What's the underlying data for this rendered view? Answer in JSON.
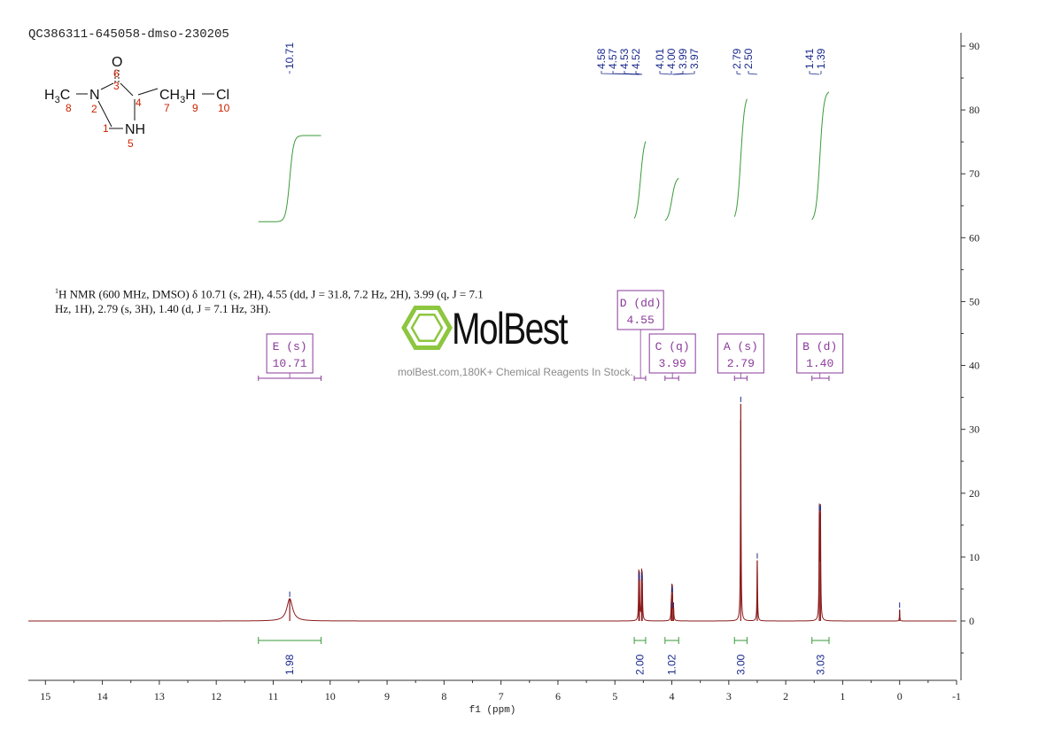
{
  "header": {
    "sample_id": "QC386311-645058-dmso-230205"
  },
  "structure": {
    "labels": {
      "o": "O",
      "h3c": "H3C",
      "n": "N",
      "nh": "NH",
      "ch3h": "CH3H",
      "cl": "Cl"
    },
    "atom_numbers": [
      "1",
      "2",
      "3",
      "4",
      "5",
      "6",
      "7",
      "8",
      "9",
      "10"
    ]
  },
  "nmr_summary": {
    "prefix": "1",
    "line1": "H NMR (600 MHz, DMSO) δ 10.71 (s, 2H), 4.55 (dd, J = 31.8, 7.2 Hz, 2H), 3.99 (q, J = 7.1",
    "line2": "Hz, 1H), 2.79 (s, 3H), 1.40 (d, J = 7.1 Hz, 3H)."
  },
  "watermark": {
    "brand": "MolBest",
    "tagline": "molBest.com,180K+ Chemical Reagents In Stock."
  },
  "colors": {
    "spectrum": "#8b1a1a",
    "integral": "#3a9a3a",
    "peak_label": "#1a2a8c",
    "multiplet_box": "#8a3a9a",
    "axis": "#333333",
    "logo_green": "#8dc63f"
  },
  "chart_data": {
    "type": "line",
    "title": "",
    "xlabel": "f1 (ppm)",
    "ylabel": "",
    "xlim": [
      15.3,
      -1.0
    ],
    "ylim": [
      -9,
      92
    ],
    "x_reversed": true,
    "x_ticks": [
      "15",
      "14",
      "13",
      "12",
      "11",
      "10",
      "9",
      "8",
      "7",
      "6",
      "5",
      "4",
      "3",
      "2",
      "1",
      "0",
      "-1"
    ],
    "y_ticks": [
      "90",
      "80",
      "70",
      "60",
      "50",
      "40",
      "30",
      "20",
      "10",
      "0"
    ],
    "grid": false,
    "peaks": [
      {
        "ppm": 10.71,
        "height": 3.5,
        "width": 0.06
      },
      {
        "ppm": 4.58,
        "height": 6.5,
        "width": 0.006
      },
      {
        "ppm": 4.57,
        "height": 6.0,
        "width": 0.006
      },
      {
        "ppm": 4.53,
        "height": 6.5,
        "width": 0.006
      },
      {
        "ppm": 4.52,
        "height": 6.0,
        "width": 0.006
      },
      {
        "ppm": 4.01,
        "height": 1.8,
        "width": 0.006
      },
      {
        "ppm": 4.0,
        "height": 4.2,
        "width": 0.006
      },
      {
        "ppm": 3.99,
        "height": 4.2,
        "width": 0.006
      },
      {
        "ppm": 3.97,
        "height": 1.8,
        "width": 0.006
      },
      {
        "ppm": 2.79,
        "height": 34.0,
        "width": 0.006
      },
      {
        "ppm": 2.5,
        "height": 9.5,
        "width": 0.006
      },
      {
        "ppm": 1.41,
        "height": 17.0,
        "width": 0.006
      },
      {
        "ppm": 1.39,
        "height": 17.0,
        "width": 0.006
      },
      {
        "ppm": 0.0,
        "height": 1.8,
        "width": 0.004
      }
    ],
    "peak_labels": [
      {
        "text": "10.71",
        "ppm": 10.71
      },
      {
        "text": "4.58",
        "ppm": 4.58
      },
      {
        "text": "4.57",
        "ppm": 4.57
      },
      {
        "text": "4.53",
        "ppm": 4.53
      },
      {
        "text": "4.52",
        "ppm": 4.52
      },
      {
        "text": "4.01",
        "ppm": 4.01
      },
      {
        "text": "4.00",
        "ppm": 4.0
      },
      {
        "text": "3.99",
        "ppm": 3.99
      },
      {
        "text": "3.97",
        "ppm": 3.97
      },
      {
        "text": "2.79",
        "ppm": 2.79
      },
      {
        "text": "2.50",
        "ppm": 2.5
      },
      {
        "text": "1.41",
        "ppm": 1.41
      },
      {
        "text": "1.39",
        "ppm": 1.39
      }
    ],
    "integrals": [
      {
        "from": 11.26,
        "to": 10.16,
        "value": "1.98",
        "center": 10.71,
        "curve_start": 62.5,
        "curve_end": 76.0
      },
      {
        "from": 4.66,
        "to": 4.46,
        "value": "2.00",
        "center": 4.55,
        "curve_start": 62.5,
        "curve_end": 76.0
      },
      {
        "from": 4.12,
        "to": 3.88,
        "value": "1.02",
        "center": 4.0,
        "curve_start": 62.5,
        "curve_end": 69.5
      },
      {
        "from": 2.9,
        "to": 2.68,
        "value": "3.00",
        "center": 2.79,
        "curve_start": 62.5,
        "curve_end": 82.5
      },
      {
        "from": 1.54,
        "to": 1.24,
        "value": "3.03",
        "center": 1.4,
        "curve_start": 62.5,
        "curve_end": 83.0
      }
    ],
    "multiplets": [
      {
        "label": "E (s)",
        "shift": "10.71",
        "from": 11.26,
        "to": 10.16,
        "center": 10.71
      },
      {
        "label": "D (dd)",
        "shift": "4.55",
        "from": 4.66,
        "to": 4.46,
        "center": 4.55
      },
      {
        "label": "C (q)",
        "shift": "3.99",
        "from": 4.12,
        "to": 3.88,
        "center": 3.99
      },
      {
        "label": "A (s)",
        "shift": "2.79",
        "from": 2.9,
        "to": 2.68,
        "center": 2.79
      },
      {
        "label": "B (d)",
        "shift": "1.40",
        "from": 1.54,
        "to": 1.24,
        "center": 1.4
      }
    ]
  }
}
